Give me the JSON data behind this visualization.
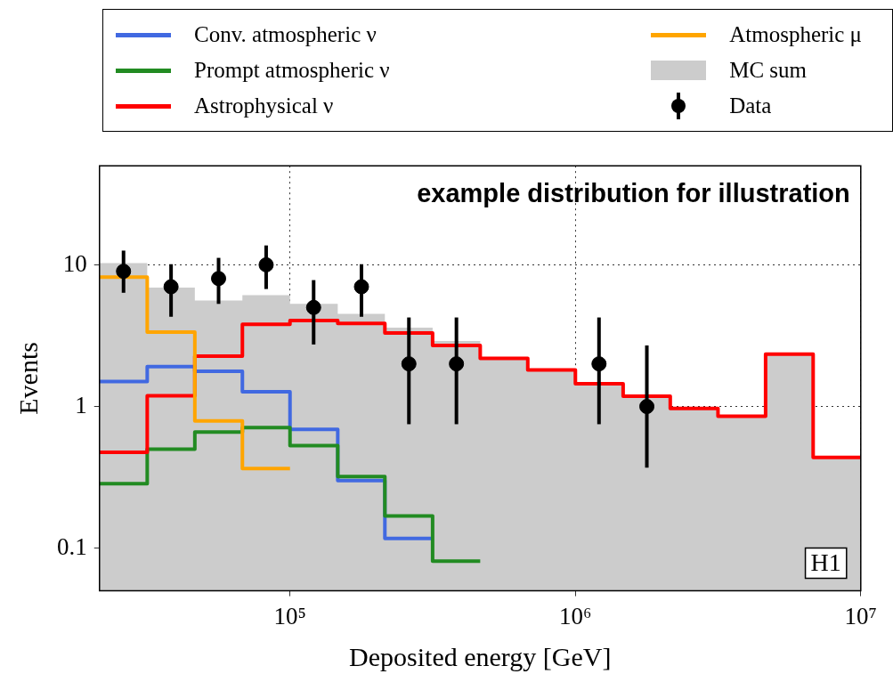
{
  "chart_data": {
    "type": "histogram",
    "bins": [
      21500,
      31600,
      46400,
      68100,
      100000,
      147000,
      215000,
      316000,
      464000,
      681000,
      1000000,
      1470000,
      2150000,
      3160000,
      4640000,
      6810000,
      10000000
    ],
    "series": [
      {
        "name": "Conv. atmospheric ν",
        "type": "step",
        "marker": "none",
        "color": "#4169e1",
        "x": [
          21500,
          31600,
          46400,
          68100,
          100000,
          147000,
          215000,
          316000
        ],
        "values": [
          1.5,
          1.91,
          1.77,
          1.27,
          0.69,
          0.3,
          0.117,
          0.117
        ]
      },
      {
        "name": "Prompt atmospheric ν",
        "type": "step",
        "marker": "none",
        "color": "#228b22",
        "x": [
          21500,
          31600,
          46400,
          68100,
          100000,
          147000,
          215000,
          316000,
          464000
        ],
        "values": [
          0.285,
          0.5,
          0.66,
          0.71,
          0.53,
          0.32,
          0.169,
          0.081,
          0.081
        ]
      },
      {
        "name": "Astrophysical ν",
        "type": "step",
        "marker": "none",
        "color": "#ff0000",
        "x": [
          21500,
          31600,
          46400,
          68100,
          100000,
          147000,
          215000,
          316000,
          464000,
          681000,
          1000000,
          1470000,
          2150000,
          3160000,
          4640000,
          6810000,
          10000000
        ],
        "values": [
          0.475,
          1.19,
          2.27,
          3.8,
          4.04,
          3.86,
          3.3,
          2.7,
          2.19,
          1.81,
          1.45,
          1.18,
          0.97,
          0.855,
          2.34,
          0.437,
          0.437
        ]
      },
      {
        "name": "Atmospheric μ",
        "type": "step",
        "marker": "none",
        "color": "#ffa500",
        "x": [
          21500,
          31600,
          46400,
          68100,
          100000
        ],
        "values": [
          8.2,
          3.35,
          0.79,
          0.365,
          0.365
        ]
      },
      {
        "name": "MC sum",
        "color": "#cccccc",
        "values": [
          10.3,
          6.9,
          5.6,
          6.1,
          5.3,
          4.5,
          3.6,
          2.9,
          2.19,
          1.81,
          1.45,
          1.18,
          0.97,
          0.855,
          2.34,
          0.437
        ]
      },
      {
        "name": "Data",
        "type": "scatter",
        "marker": "circle",
        "color": "#000000",
        "x": [
          26100,
          38300,
          56200,
          82500,
          121000,
          178000,
          261000,
          383000,
          1210000,
          1780000
        ],
        "values": [
          9,
          7,
          8,
          10,
          5,
          7,
          2,
          2,
          2,
          1
        ],
        "errors": [
          [
            6.35,
            12.6
          ],
          [
            4.3,
            10.1
          ],
          [
            5.3,
            11.2
          ],
          [
            6.75,
            13.7
          ],
          [
            2.74,
            7.8
          ],
          [
            4.3,
            10.1
          ],
          [
            0.75,
            4.25
          ],
          [
            0.75,
            4.25
          ],
          [
            0.75,
            4.25
          ],
          [
            0.37,
            2.7
          ]
        ]
      }
    ],
    "xlabel": "Deposited energy [GeV]",
    "ylabel": "Events",
    "xlim": [
      21500,
      10000000
    ],
    "ylim": [
      0.05,
      50
    ],
    "xticks": [
      {
        "value": 100000,
        "label": "10⁵"
      },
      {
        "value": 1000000,
        "label": "10⁶"
      },
      {
        "value": 10000000,
        "label": "10⁷"
      }
    ],
    "yticks": [
      0.1,
      1,
      10
    ],
    "log": "xy",
    "grid": true,
    "legend": "top",
    "line_style": "solid",
    "annotations": [
      "example distribution for illustration",
      "H1"
    ]
  }
}
